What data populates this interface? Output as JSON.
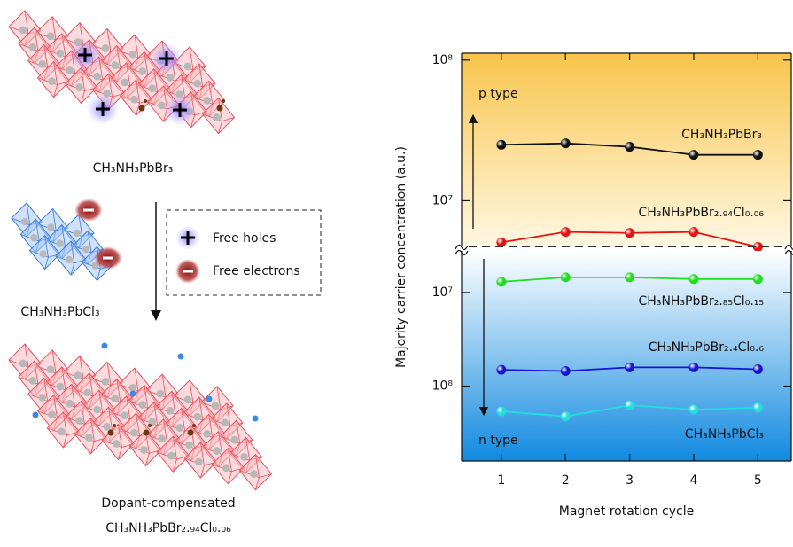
{
  "diagram": {
    "top_label": "CH₃NH₃PbBr₃",
    "middle_label": "CH₃NH₃PbCl₃",
    "legend": [
      "Free holes",
      "Free electrons"
    ],
    "bottom_label": [
      "Dopant-compensated",
      "CH₃NH₃PbBr₂.₉₄Cl₀.₀₆"
    ]
  },
  "chart_data": [
    {
      "type": "line",
      "ylabel": "Majority carrier concentration (a.u.)",
      "annotation": "p type",
      "log_y": true,
      "x": [
        1,
        2,
        3,
        4,
        5
      ],
      "xlim": [
        0.38,
        5.52
      ],
      "ylim": [
        4800000,
        112000000
      ],
      "yticks": [
        {
          "value": 10000000,
          "label": "10⁷"
        },
        {
          "value": 100000000,
          "label": "10⁸"
        }
      ],
      "series": [
        {
          "name": "CH₃NH₃PbBr₃",
          "color": "#111111",
          "values": [
            25000000,
            25600000,
            24200000,
            21200000,
            21200000
          ]
        },
        {
          "name": "CH₃NH₃PbBr₂.₉₄Cl₀.₀₆",
          "color": "#e81010",
          "values": [
            5060000,
            6000000,
            5900000,
            6000000,
            4700000
          ]
        }
      ]
    },
    {
      "type": "line",
      "xlabel": "Magnet rotation cycle",
      "annotation": "n type",
      "log_y": true,
      "x": [
        1,
        2,
        3,
        4,
        5
      ],
      "xlim": [
        0.38,
        5.52
      ],
      "xticks": [
        1,
        2,
        3,
        4,
        5
      ],
      "ylim": [
        630000000,
        3600000
      ],
      "yticks": [
        {
          "value": 10000000,
          "label": "10⁷"
        },
        {
          "value": 100000000,
          "label": "10⁸"
        }
      ],
      "series": [
        {
          "name": "CH₃NH₃PbBr₂.₈₅Cl₀.₁₅",
          "color": "#22dd22",
          "values": [
            7700000,
            6900000,
            6900000,
            7200000,
            7200000
          ]
        },
        {
          "name": "CH₃NH₃PbBr₂.₄Cl₀.₆",
          "color": "#1515d0",
          "values": [
            67000000,
            69000000,
            63000000,
            63000000,
            66000000
          ]
        },
        {
          "name": "CH₃NH₃PbCl₃",
          "color": "#22dddd",
          "values": [
            186000000,
            210000000,
            160000000,
            178000000,
            170000000
          ]
        }
      ]
    }
  ]
}
